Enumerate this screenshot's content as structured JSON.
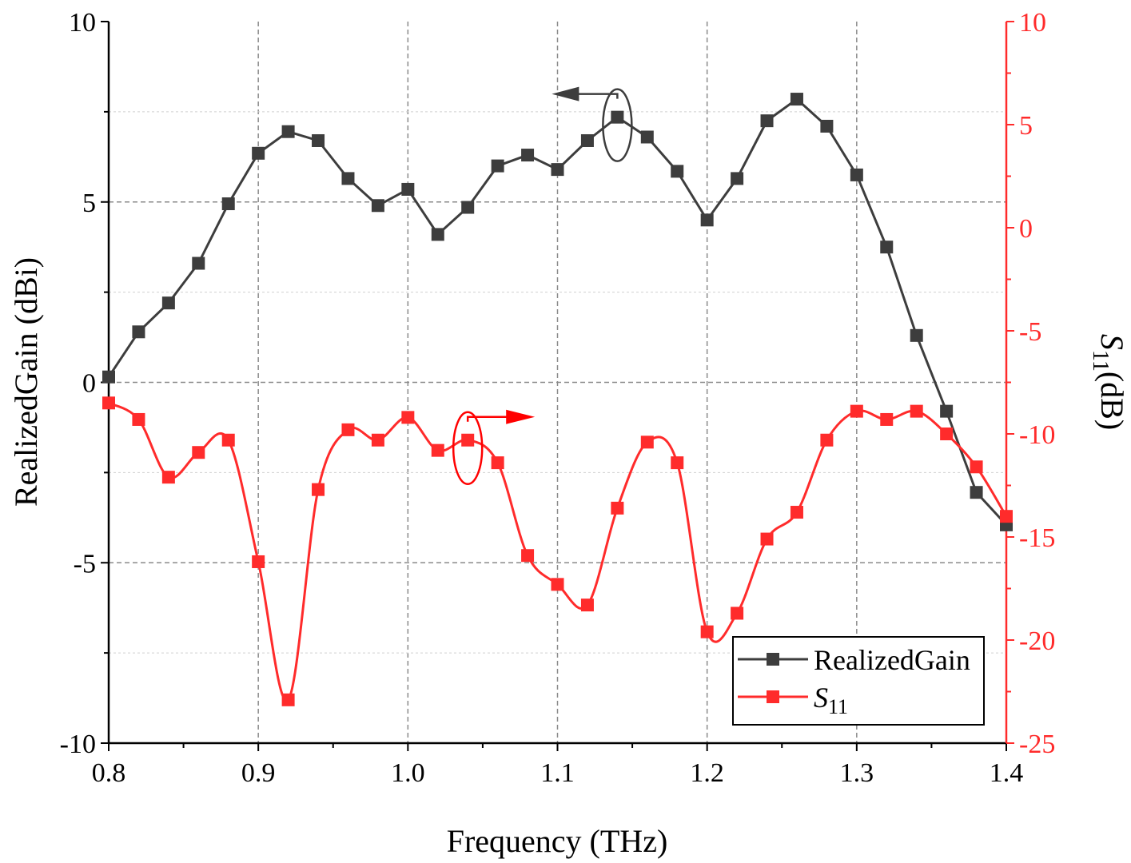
{
  "chart_data": {
    "type": "line",
    "title": "",
    "xlabel": "Frequency (THz)",
    "ylabel": "RealizedGain (dBi)",
    "ylabel2_main": "S",
    "ylabel2_sub": "11",
    "ylabel2_tail": "(dB)",
    "xlim": [
      0.8,
      1.4
    ],
    "ylim": [
      -10,
      10
    ],
    "y2lim": [
      -25,
      10
    ],
    "grid": true,
    "legend_position": "bottom-right",
    "x_ticks": [
      "0.8",
      "0.9",
      "1.0",
      "1.1",
      "1.2",
      "1.3",
      "1.4"
    ],
    "y_ticks": [
      "10",
      "5",
      "0",
      "-5",
      "-10"
    ],
    "y2_ticks": [
      "10",
      "5",
      "0",
      "-5",
      "-10",
      "-15",
      "-20",
      "-25"
    ],
    "x": [
      0.8,
      0.82,
      0.84,
      0.86,
      0.88,
      0.9,
      0.92,
      0.94,
      0.96,
      0.98,
      1.0,
      1.02,
      1.04,
      1.06,
      1.08,
      1.1,
      1.12,
      1.14,
      1.16,
      1.18,
      1.2,
      1.22,
      1.24,
      1.26,
      1.28,
      1.3,
      1.32,
      1.34,
      1.36,
      1.38,
      1.4
    ],
    "series": [
      {
        "name": "RealizedGain",
        "axis": "left",
        "color": "#3d3d3d",
        "values": [
          0.15,
          1.4,
          2.2,
          3.3,
          4.95,
          6.35,
          6.95,
          6.7,
          5.65,
          4.9,
          5.35,
          4.1,
          4.85,
          6.0,
          6.3,
          5.9,
          6.7,
          7.35,
          6.8,
          5.85,
          4.5,
          5.65,
          7.25,
          7.85,
          7.1,
          5.75,
          3.75,
          1.3,
          -0.8,
          -3.05,
          -3.95
        ]
      },
      {
        "name": "S",
        "name_sub": "11",
        "axis": "right",
        "color": "#ff2b2b",
        "values": [
          -8.5,
          -9.3,
          -12.1,
          -10.9,
          -10.3,
          -16.2,
          -22.9,
          -12.7,
          -9.8,
          -10.3,
          -9.2,
          -10.8,
          -10.3,
          -11.4,
          -15.9,
          -17.3,
          -18.3,
          -13.6,
          -10.4,
          -11.4,
          -19.6,
          -18.7,
          -15.1,
          -13.8,
          -10.3,
          -8.9,
          -9.3,
          -8.9,
          -10.0,
          -11.6,
          -14.0
        ]
      }
    ],
    "annotations": [
      {
        "type": "ellipse-arrow",
        "series": "RealizedGain",
        "target_x": 1.14,
        "direction": "left"
      },
      {
        "type": "ellipse-arrow",
        "series": "S11",
        "target_x": 1.04,
        "direction": "right"
      }
    ]
  }
}
